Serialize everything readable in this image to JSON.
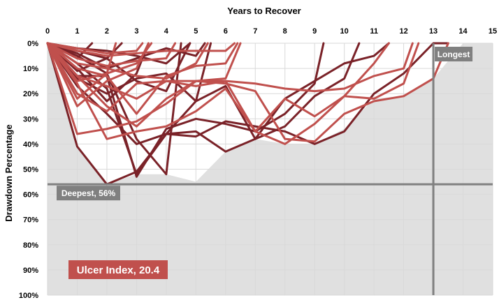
{
  "chart_data": {
    "type": "line",
    "title": "",
    "xlabel": "Years to Recover",
    "ylabel": "Drawdown Percentage",
    "x_ticks": [
      0,
      1,
      2,
      3,
      4,
      5,
      6,
      7,
      8,
      9,
      10,
      11,
      12,
      13,
      14,
      15
    ],
    "y_ticks": [
      "0%",
      "10%",
      "20%",
      "30%",
      "40%",
      "50%",
      "60%",
      "70%",
      "80%",
      "90%",
      "100%"
    ],
    "xlim": [
      0,
      15
    ],
    "ylim": [
      0,
      100
    ],
    "y_inverted": true,
    "grid": "vertical and horizontal gridlines",
    "colors": {
      "dark": "#7a2228",
      "light": "#c0504d",
      "envelope": "#e0e0e0",
      "reference": "#808080"
    },
    "envelope": {
      "x": [
        0,
        1,
        2,
        3,
        4,
        5,
        6,
        7,
        8,
        9,
        10,
        11,
        12,
        13,
        14,
        15
      ],
      "y": [
        0,
        41,
        56,
        52,
        52,
        55,
        43,
        38,
        40,
        40,
        34,
        22,
        21,
        14,
        0,
        0
      ]
    },
    "series": [
      {
        "color": "dark",
        "x": [
          0,
          1,
          2,
          3,
          4,
          5,
          6,
          7,
          8,
          9,
          10,
          11,
          12,
          13,
          13.5
        ],
        "y": [
          0,
          41,
          56,
          51,
          36,
          37,
          31,
          33,
          35,
          40,
          35,
          20,
          12,
          0,
          0
        ]
      },
      {
        "color": "dark",
        "x": [
          0,
          1,
          2,
          3,
          4,
          5,
          6,
          7,
          8,
          9,
          10,
          11,
          11.5
        ],
        "y": [
          0,
          14,
          20,
          14,
          12,
          23,
          17,
          38,
          22,
          15,
          8,
          5,
          0
        ]
      },
      {
        "color": "dark",
        "x": [
          0,
          1,
          2,
          3,
          4,
          5,
          6,
          7,
          8,
          9,
          10,
          10.5
        ],
        "y": [
          0,
          17,
          28,
          40,
          36,
          35,
          43,
          38,
          33,
          21,
          14,
          0
        ]
      },
      {
        "color": "dark",
        "x": [
          0,
          1,
          2,
          3,
          4,
          5,
          6,
          7,
          8,
          9,
          9.3
        ],
        "y": [
          0,
          13,
          13,
          53,
          34,
          30,
          32,
          35,
          28,
          16,
          0
        ]
      },
      {
        "color": "dark",
        "x": [
          0,
          1,
          2,
          3,
          4,
          5,
          5.5
        ],
        "y": [
          0,
          8,
          18,
          52,
          36,
          23,
          0
        ]
      },
      {
        "color": "dark",
        "x": [
          0,
          1,
          2,
          3,
          3.4
        ],
        "y": [
          0,
          10,
          23,
          12,
          0
        ]
      },
      {
        "color": "dark",
        "x": [
          0,
          1,
          2,
          3,
          4,
          4.5
        ],
        "y": [
          0,
          5,
          12,
          38,
          52,
          0
        ]
      },
      {
        "color": "dark",
        "x": [
          0,
          1,
          2,
          2.5
        ],
        "y": [
          0,
          3,
          6,
          0
        ]
      },
      {
        "color": "dark",
        "x": [
          0,
          1,
          2,
          3,
          4,
          5,
          5.3
        ],
        "y": [
          0,
          4,
          10,
          6,
          2,
          5,
          0
        ]
      },
      {
        "color": "dark",
        "x": [
          0,
          1,
          2,
          3,
          4,
          4.8
        ],
        "y": [
          0,
          2,
          3,
          5,
          8,
          0
        ]
      },
      {
        "color": "dark",
        "x": [
          0,
          1,
          1.5
        ],
        "y": [
          0,
          6,
          0
        ]
      },
      {
        "color": "dark",
        "x": [
          0,
          1,
          2,
          3,
          4,
          4.8
        ],
        "y": [
          0,
          11,
          6,
          15,
          19,
          0
        ]
      },
      {
        "color": "light",
        "x": [
          0,
          1,
          2,
          3,
          4,
          5,
          6,
          7,
          8,
          9,
          10,
          11,
          12,
          13,
          13.5
        ],
        "y": [
          0,
          36,
          34,
          31,
          24,
          15,
          16,
          19,
          38,
          39,
          28,
          23,
          21,
          14,
          0
        ]
      },
      {
        "color": "light",
        "x": [
          0,
          1,
          2,
          3,
          4,
          5,
          6,
          7,
          8,
          9,
          10,
          11,
          11.5
        ],
        "y": [
          0,
          16,
          38,
          35,
          33,
          27,
          18,
          35,
          22,
          29,
          21,
          8,
          0
        ]
      },
      {
        "color": "light",
        "x": [
          0,
          1,
          2,
          3,
          4,
          5,
          6,
          7,
          8,
          9,
          10,
          11,
          12,
          12.3
        ],
        "y": [
          0,
          13,
          17,
          22,
          15,
          17,
          15,
          16,
          18,
          19,
          18,
          13,
          10,
          0
        ]
      },
      {
        "color": "light",
        "x": [
          0,
          1,
          2,
          3,
          4,
          5,
          6,
          7,
          8,
          9,
          10,
          11,
          12,
          12.5
        ],
        "y": [
          0,
          13,
          25,
          33,
          22,
          15,
          15,
          35,
          40,
          32,
          21,
          22,
          16,
          0
        ]
      },
      {
        "color": "light",
        "x": [
          0,
          1,
          2,
          3,
          4,
          5,
          6,
          6.5
        ],
        "y": [
          0,
          20,
          27,
          16,
          15,
          15,
          14,
          0
        ]
      },
      {
        "color": "light",
        "x": [
          0,
          1,
          2,
          3,
          4,
          5,
          6,
          6.4
        ],
        "y": [
          0,
          10,
          13,
          28,
          13,
          9,
          8,
          0
        ]
      },
      {
        "color": "light",
        "x": [
          0,
          1,
          2,
          3,
          4,
          4.3
        ],
        "y": [
          0,
          6,
          9,
          7,
          6,
          0
        ]
      },
      {
        "color": "light",
        "x": [
          0,
          1,
          2,
          3,
          3.4
        ],
        "y": [
          0,
          25,
          15,
          10,
          0
        ]
      },
      {
        "color": "light",
        "x": [
          0,
          1,
          2,
          3,
          4,
          5,
          6,
          6.3
        ],
        "y": [
          0,
          3,
          5,
          4,
          3,
          3,
          3,
          0
        ]
      },
      {
        "color": "light",
        "x": [
          0,
          1,
          2,
          3,
          4,
          5,
          5.4
        ],
        "y": [
          0,
          8,
          10,
          13,
          14,
          8,
          0
        ]
      },
      {
        "color": "light",
        "x": [
          0,
          1,
          2,
          3,
          3.5
        ],
        "y": [
          0,
          15,
          12,
          8,
          0
        ]
      },
      {
        "color": "light",
        "x": [
          0,
          1,
          2,
          3,
          3.2
        ],
        "y": [
          0,
          2,
          4,
          3,
          0
        ]
      },
      {
        "color": "light",
        "x": [
          0,
          1,
          2,
          2.3
        ],
        "y": [
          0,
          22,
          12,
          0
        ]
      }
    ],
    "reference_lines": [
      {
        "axis": "y",
        "value": 56,
        "label": "Deepest, 56%"
      },
      {
        "axis": "x",
        "value": 13,
        "label": "Longest"
      }
    ],
    "annotations": [
      {
        "text": "Ulcer Index, 20.4",
        "color": "light"
      }
    ]
  }
}
